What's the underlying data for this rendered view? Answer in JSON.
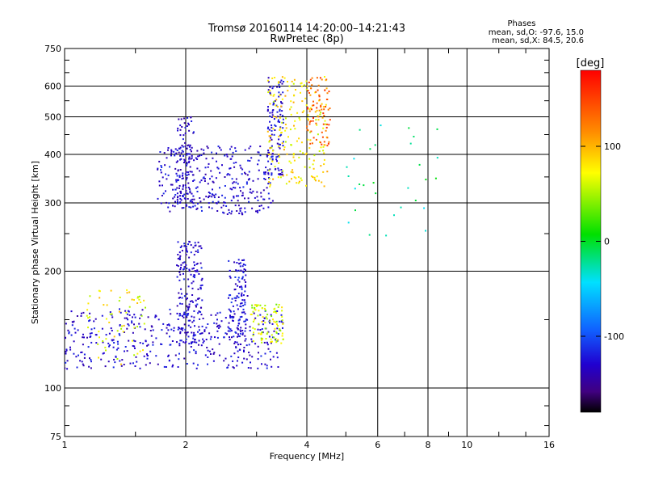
{
  "chart_data": {
    "type": "scatter",
    "title": "Tromsø 20160114 14:20:00–14:21:43",
    "subtitle": "RwPretec (8p)",
    "stats": {
      "heading": "Phases",
      "line1": "mean, sd,O: -97.6, 15.0",
      "line2": "mean, sd,X:  84.5, 20.6"
    },
    "xlabel": "Frequency [MHz]",
    "ylabel": "Stationary phase Virtual Height [km]",
    "x_scale": "log2",
    "y_scale": "log",
    "xlim": [
      1,
      16
    ],
    "ylim": [
      75,
      750
    ],
    "x_ticks": [
      1,
      2,
      4,
      6,
      8,
      10,
      16
    ],
    "x_tick_labels": [
      "1",
      "2",
      "4",
      "6",
      "8",
      "10",
      "16"
    ],
    "y_ticks": [
      75,
      100,
      200,
      300,
      400,
      500,
      600,
      750
    ],
    "y_tick_labels": [
      "75",
      "100",
      "200",
      "300",
      "400",
      "500",
      "600",
      "750"
    ],
    "grid": true,
    "colorbar": {
      "label": "[deg]",
      "range": [
        -180,
        180
      ],
      "ticks": [
        100,
        0,
        -100
      ],
      "tick_labels": [
        "100",
        "0",
        "-100"
      ]
    },
    "clusters": [
      {
        "name": "O-mode E/F1 lower trace",
        "phase_deg": -100,
        "freq_range_mhz": [
          1.0,
          3.5
        ],
        "height_km": [
          112,
          160
        ]
      },
      {
        "name": "O-mode F1 ramp at 2 MHz",
        "phase_deg": -100,
        "freq_range_mhz": [
          1.9,
          2.2
        ],
        "height_km": [
          130,
          240
        ]
      },
      {
        "name": "O-mode 2.6 MHz spur",
        "phase_deg": -95,
        "freq_range_mhz": [
          2.55,
          2.85
        ],
        "height_km": [
          135,
          215
        ]
      },
      {
        "name": "Mixed cluster near 3 MHz",
        "phase_deg": 80,
        "freq_range_mhz": [
          2.9,
          3.5
        ],
        "height_km": [
          130,
          165
        ]
      },
      {
        "name": "Yellow low-freq cluster",
        "phase_deg": 90,
        "freq_range_mhz": [
          1.1,
          1.6
        ],
        "height_km": [
          115,
          180
        ]
      },
      {
        "name": "O-mode F2 trace",
        "phase_deg": -100,
        "freq_range_mhz": [
          1.7,
          3.3
        ],
        "height_km": [
          280,
          420
        ]
      },
      {
        "name": "O-mode F2 near 2 MHz",
        "phase_deg": -105,
        "freq_range_mhz": [
          1.9,
          2.1
        ],
        "height_km": [
          290,
          500
        ]
      },
      {
        "name": "O-mode F2 cusp at 3.3 MHz",
        "phase_deg": -100,
        "freq_range_mhz": [
          3.2,
          3.5
        ],
        "height_km": [
          350,
          640
        ]
      },
      {
        "name": "X-mode F2 trace",
        "phase_deg": 95,
        "freq_range_mhz": [
          3.2,
          4.5
        ],
        "height_km": [
          330,
          640
        ]
      },
      {
        "name": "X-mode upper orange",
        "phase_deg": 140,
        "freq_range_mhz": [
          4.0,
          4.6
        ],
        "height_km": [
          420,
          640
        ]
      },
      {
        "name": "Scattered high-freq points",
        "phase_deg": 20,
        "freq_range_mhz": [
          5.0,
          8.5
        ],
        "height_km": [
          240,
          500
        ]
      }
    ]
  }
}
